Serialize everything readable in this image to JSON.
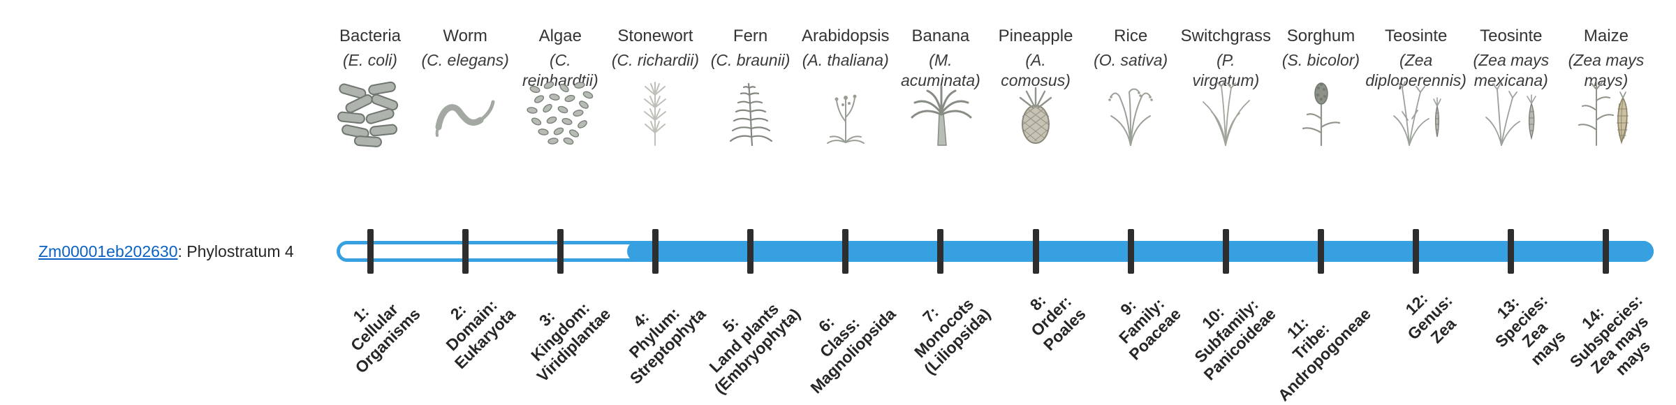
{
  "gene": {
    "id": "Zm00001eb202630",
    "label_suffix": ": Phylostratum 4"
  },
  "timeline": {
    "bar_color": "#36a0e0",
    "tick_color": "#2e2e2e",
    "filled_from_stratum": 4,
    "total_strata": 14
  },
  "strata": [
    {
      "index": 1,
      "common": "Bacteria",
      "scientific": [
        "(E. coli)"
      ],
      "icon": "bacteria-icon",
      "label": [
        "1:",
        "Cellular",
        "Organisms"
      ]
    },
    {
      "index": 2,
      "common": "Worm",
      "scientific": [
        "(C. elegans)"
      ],
      "icon": "worm-icon",
      "label": [
        "2:",
        "Domain:",
        "Eukaryota"
      ]
    },
    {
      "index": 3,
      "common": "Algae",
      "scientific": [
        "(C.",
        "reinhardtii)"
      ],
      "icon": "algae-icon",
      "label": [
        "3:",
        "Kingdom:",
        "Viridiplantae"
      ]
    },
    {
      "index": 4,
      "common": "Stonewort",
      "scientific": [
        "(C. richardii)"
      ],
      "icon": "stonewort-icon",
      "label": [
        "4:",
        "Phylum:",
        "Streptophyta"
      ]
    },
    {
      "index": 5,
      "common": "Fern",
      "scientific": [
        "(C. braunii)"
      ],
      "icon": "fern-icon",
      "label": [
        "5:",
        "Land plants",
        "(Embryophyta)"
      ]
    },
    {
      "index": 6,
      "common": "Arabidopsis",
      "scientific": [
        "(A. thaliana)"
      ],
      "icon": "arabidopsis-icon",
      "label": [
        "6:",
        "Class:",
        "Magnoliopsida"
      ]
    },
    {
      "index": 7,
      "common": "Banana",
      "scientific": [
        "(M.",
        "acuminata)"
      ],
      "icon": "banana-icon",
      "label": [
        "7:",
        "Monocots",
        "(Liliopsida)"
      ]
    },
    {
      "index": 8,
      "common": "Pineapple",
      "scientific": [
        "(A.",
        "comosus)"
      ],
      "icon": "pineapple-icon",
      "label": [
        "8:",
        "Order:",
        "Poales"
      ]
    },
    {
      "index": 9,
      "common": "Rice",
      "scientific": [
        "(O. sativa)"
      ],
      "icon": "rice-icon",
      "label": [
        "9:",
        "Family:",
        "Poaceae"
      ]
    },
    {
      "index": 10,
      "common": "Switchgrass",
      "scientific": [
        "(P.",
        "virgatum)"
      ],
      "icon": "switchgrass-icon",
      "label": [
        "10:",
        "Subfamily:",
        "Panicoideae"
      ]
    },
    {
      "index": 11,
      "common": "Sorghum",
      "scientific": [
        "(S. bicolor)"
      ],
      "icon": "sorghum-icon",
      "label": [
        "11:",
        "Tribe:",
        "Andropogoneae"
      ]
    },
    {
      "index": 12,
      "common": "Teosinte",
      "scientific": [
        "(Zea",
        "diploperennis)"
      ],
      "icon": "teosinte-diploperennis-icon",
      "label": [
        "12:",
        "Genus:",
        "Zea"
      ]
    },
    {
      "index": 13,
      "common": "Teosinte",
      "scientific": [
        "(Zea mays",
        "mexicana)"
      ],
      "icon": "teosinte-mexicana-icon",
      "label": [
        "13:",
        "Species:",
        "Zea",
        "mays"
      ]
    },
    {
      "index": 14,
      "common": "Maize",
      "scientific": [
        "(Zea mays",
        "mays)"
      ],
      "icon": "maize-icon",
      "label": [
        "14:",
        "Subspecies:",
        "Zea mays",
        "mays"
      ]
    }
  ]
}
